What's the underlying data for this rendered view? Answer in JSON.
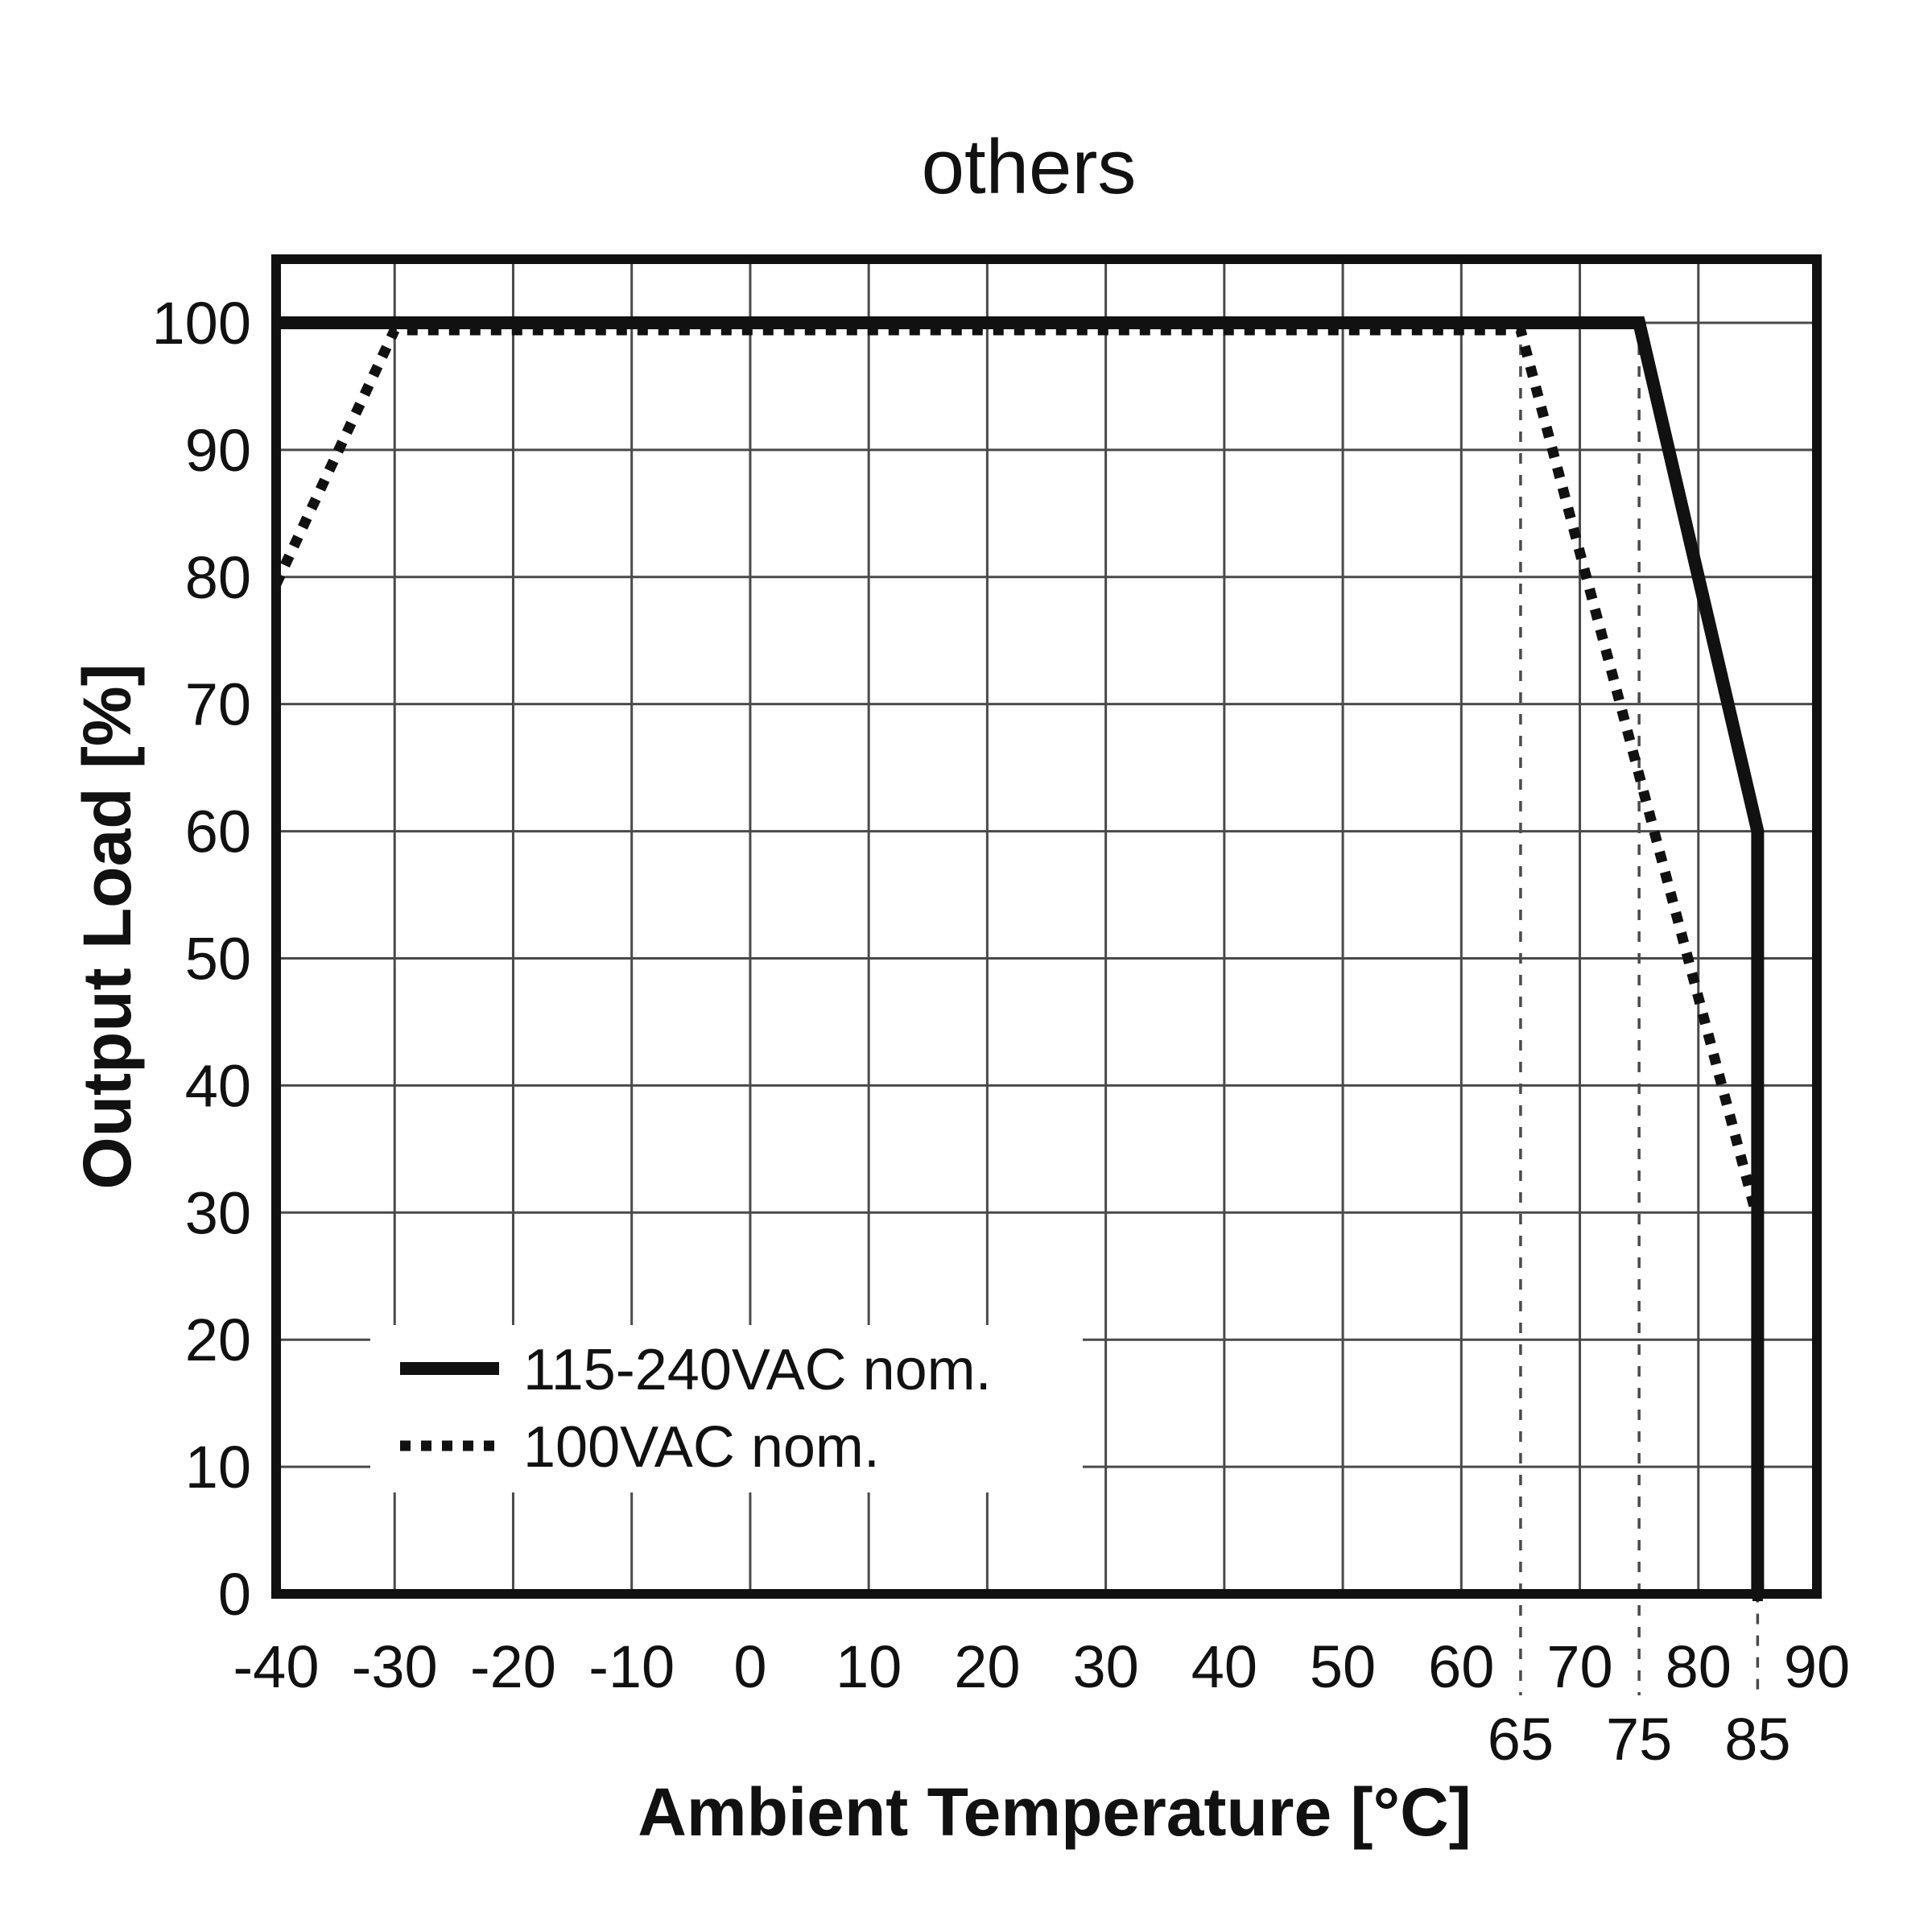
{
  "title": "others",
  "chart_data": {
    "type": "line",
    "title": "others",
    "xlabel": "Ambient Temperature [°C]",
    "ylabel": "Output Load [%]",
    "xlim": [
      -40,
      90
    ],
    "ylim": [
      0,
      105
    ],
    "x_ticks": [
      -40,
      -30,
      -20,
      -10,
      0,
      10,
      20,
      30,
      40,
      50,
      60,
      70,
      80,
      90
    ],
    "x_subticks": [
      65,
      75,
      85
    ],
    "y_ticks": [
      0,
      10,
      20,
      30,
      40,
      50,
      60,
      70,
      80,
      90,
      100
    ],
    "grid": true,
    "legend_position": "inside-bottom-left",
    "series": [
      {
        "name": "115-240VAC nom.",
        "style": "solid",
        "points": [
          [
            -40,
            100
          ],
          [
            75,
            100
          ],
          [
            85,
            60
          ],
          [
            85,
            0
          ]
        ]
      },
      {
        "name": "100VAC nom.",
        "style": "dotted",
        "points": [
          [
            -40,
            80
          ],
          [
            -30,
            100
          ],
          [
            65,
            100
          ],
          [
            85,
            30
          ],
          [
            85,
            0
          ]
        ]
      }
    ],
    "reference_lines_x": [
      {
        "x": 65,
        "y_top": 100
      },
      {
        "x": 75,
        "y_top": 100
      },
      {
        "x": 85,
        "y_top": 60
      }
    ]
  },
  "legend": {
    "items": [
      {
        "label": "115-240VAC nom.",
        "style": "solid"
      },
      {
        "label": "100VAC nom.",
        "style": "dotted"
      }
    ]
  },
  "colors": {
    "line": "#111111",
    "grid": "#4a4a4a",
    "background": "#ffffff",
    "text": "#111111"
  }
}
